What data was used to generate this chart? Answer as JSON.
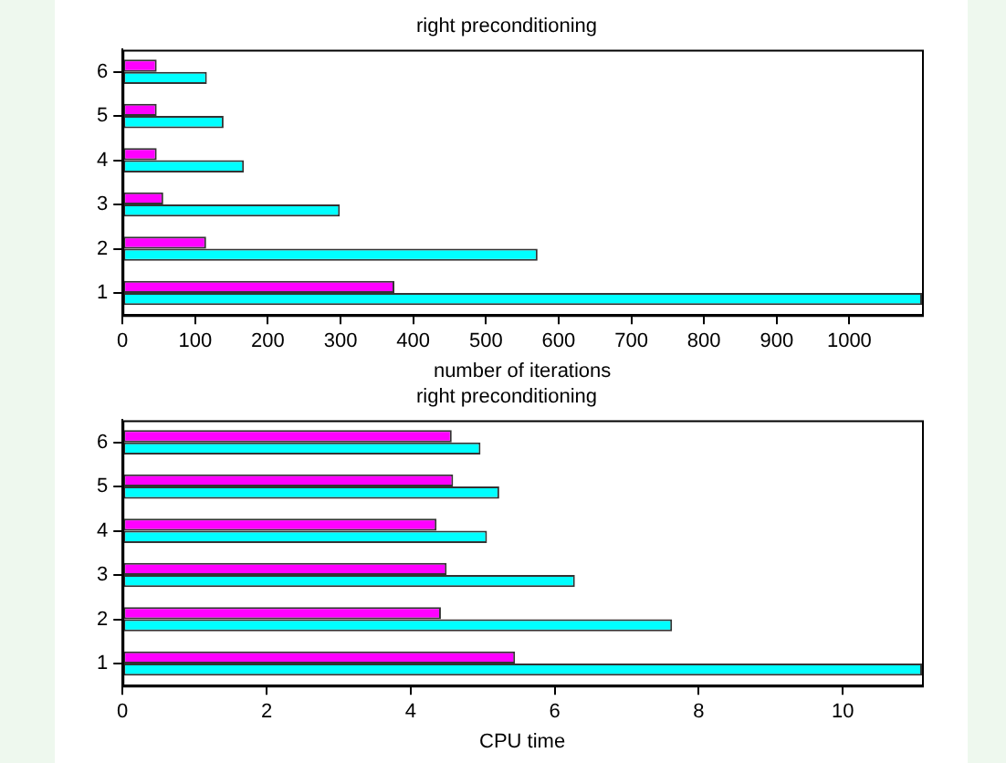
{
  "chart_data": [
    {
      "type": "bar",
      "orientation": "horizontal",
      "title": "right preconditioning",
      "xlabel": "number of iterations",
      "categories": [
        "6",
        "5",
        "4",
        "3",
        "2",
        "1"
      ],
      "series": [
        {
          "color": "#ff00ff",
          "values": [
            47,
            47,
            47,
            56,
            115,
            374
          ]
        },
        {
          "color": "#00ffff",
          "values": [
            116,
            139,
            167,
            299,
            571,
            1100
          ]
        }
      ],
      "xlim": [
        0,
        1100
      ],
      "xticks": [
        0,
        100,
        200,
        300,
        400,
        500,
        600,
        700,
        800,
        900,
        1000
      ],
      "grid": false,
      "legend": false
    },
    {
      "type": "bar",
      "orientation": "horizontal",
      "title": "right preconditioning",
      "xlabel": "CPU time",
      "categories": [
        "6",
        "5",
        "4",
        "3",
        "2",
        "1"
      ],
      "series": [
        {
          "color": "#ff00ff",
          "values": [
            4.57,
            4.59,
            4.36,
            4.5,
            4.42,
            5.45
          ]
        },
        {
          "color": "#00ffff",
          "values": [
            4.97,
            5.23,
            5.06,
            6.28,
            7.63,
            11.1
          ]
        }
      ],
      "xlim": [
        0,
        11.1
      ],
      "xticks": [
        0,
        2,
        4,
        6,
        8,
        10
      ],
      "grid": false,
      "legend": false
    }
  ]
}
